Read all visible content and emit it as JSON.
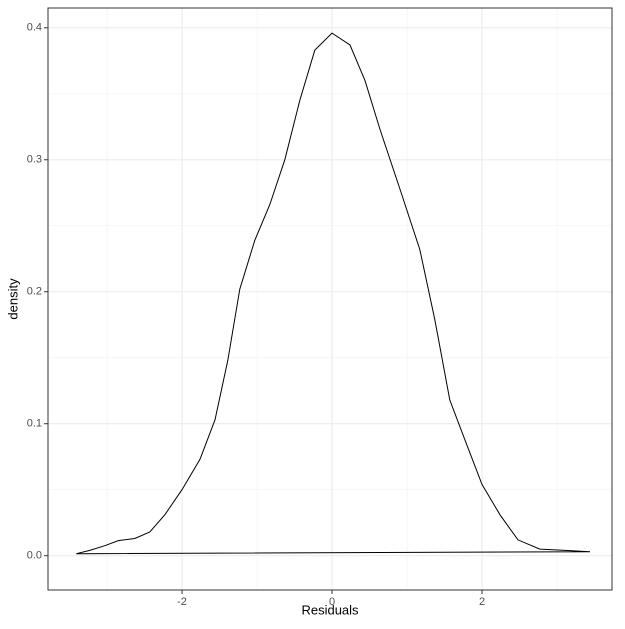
{
  "chart_data": {
    "type": "density",
    "x_label": "Residuals",
    "y_label": "density",
    "x": [
      -3.41,
      -3.23,
      -3.03,
      -2.85,
      -2.63,
      -2.43,
      -2.23,
      -2.0,
      -1.76,
      -1.56,
      -1.39,
      -1.23,
      -1.03,
      -0.83,
      -0.63,
      -0.43,
      -0.23,
      0.0,
      0.24,
      0.44,
      0.64,
      0.91,
      1.17,
      1.37,
      1.57,
      1.77,
      2.0,
      2.24,
      2.48,
      2.77,
      3.11,
      3.44
    ],
    "values": [
      0.0015,
      0.004,
      0.0076,
      0.0114,
      0.013,
      0.018,
      0.031,
      0.05,
      0.073,
      0.103,
      0.148,
      0.202,
      0.239,
      0.266,
      0.3,
      0.345,
      0.383,
      0.396,
      0.387,
      0.36,
      0.323,
      0.277,
      0.232,
      0.179,
      0.118,
      0.088,
      0.054,
      0.031,
      0.012,
      0.005,
      0.004,
      0.003
    ],
    "color": "#000000",
    "xlim": [
      -3.787,
      3.733
    ],
    "ylim": [
      -0.026,
      0.415
    ],
    "xticks": [
      -2,
      0,
      2
    ],
    "yticks": [
      {
        "value": 0,
        "label": "0.0"
      },
      0.1,
      0.2,
      0.3,
      0.4
    ],
    "x_minor": [
      -3,
      -1,
      1,
      3
    ],
    "y_minor": [
      0.05,
      0.15,
      0.25,
      0.35
    ],
    "grid": true
  }
}
